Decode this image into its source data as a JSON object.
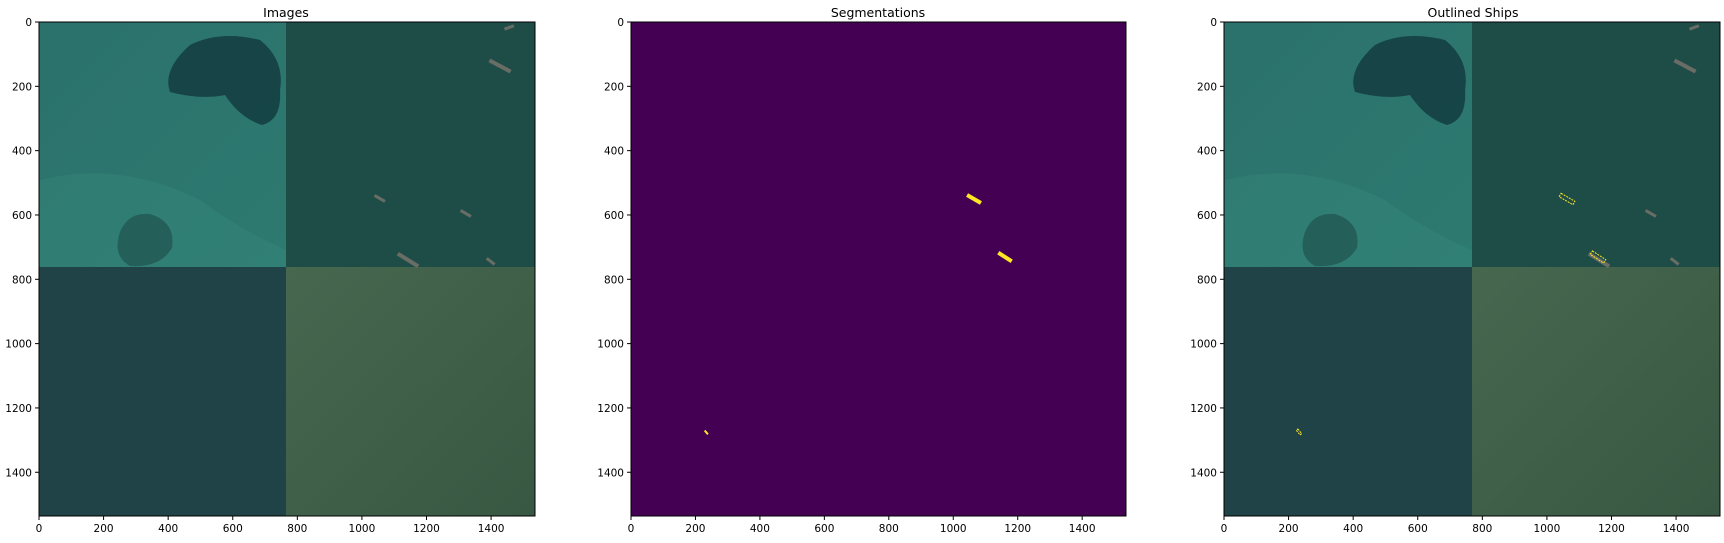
{
  "panels": [
    {
      "id": "images",
      "title": "Images"
    },
    {
      "id": "segmentations",
      "title": "Segmentations"
    },
    {
      "id": "outlined",
      "title": "Outlined Ships"
    }
  ],
  "axes": {
    "x_ticks": [
      0,
      200,
      400,
      600,
      800,
      1000,
      1200,
      1400
    ],
    "y_ticks": [
      0,
      200,
      400,
      600,
      800,
      1000,
      1200,
      1400
    ],
    "extent": [
      0,
      1536
    ]
  },
  "colors": {
    "tile_top_left": "#2c706b",
    "tile_top_right": "#1d4d47",
    "tile_bottom_left": "#1f4347",
    "tile_bottom_right": "#3c5f4a",
    "mask_background": "#440154",
    "mask_ship": "#fde725",
    "ship_hull": "#6a6d66"
  }
}
